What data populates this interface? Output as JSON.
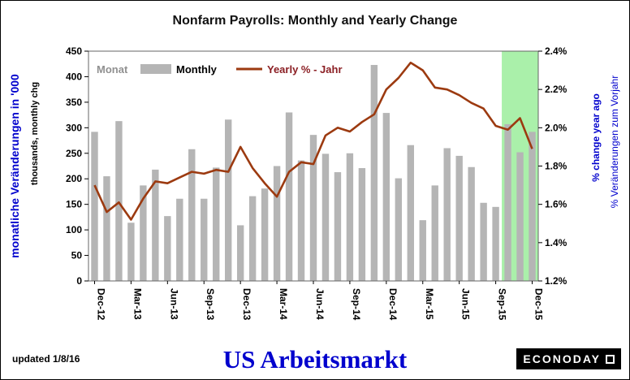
{
  "title": "Nonfarm Payrolls: Monthly and Yearly Change",
  "legend": {
    "monat_label": "Monat",
    "monthly_label": "Monthly",
    "yearly_label": "Yearly % - Jahr"
  },
  "left_axis": {
    "label_de": "monatliche Veränderungen in '000",
    "label_en": "thousands, monthly chg",
    "ticks": [
      0,
      50,
      100,
      150,
      200,
      250,
      300,
      350,
      400,
      450
    ]
  },
  "right_axis": {
    "label_en": "% change year ago",
    "label_de": "% Veränderungen zum Vorjahr",
    "tick_values": [
      1.2,
      1.4,
      1.6,
      1.8,
      2.0,
      2.2,
      2.4
    ],
    "tick_labels": [
      "1.2%",
      "1.4%",
      "1.6%",
      "1.8%",
      "2.0%",
      "2.2%",
      "2.4%"
    ]
  },
  "footer": {
    "updated": "updated 1/8/16",
    "big_title": "US Arbeitsmarkt",
    "logo_text": "ECONODAY"
  },
  "colors": {
    "bar": "#b5b5b5",
    "line": "#9c3a10",
    "legend_yearly_text": "#8b1f24",
    "monat_text": "#909090",
    "highlight": "#aaf0aa",
    "blue_label": "#0000cd",
    "axis_text": "#000000",
    "plot_border": "#666666"
  },
  "chart_data": {
    "type": "bar",
    "note": "gray bars = monthly change (left axis, thousands); dark red line = yearly % change (right axis)",
    "x": [
      "Dec-12",
      "Jan-13",
      "Feb-13",
      "Mar-13",
      "Apr-13",
      "May-13",
      "Jun-13",
      "Jul-13",
      "Aug-13",
      "Sep-13",
      "Oct-13",
      "Nov-13",
      "Dec-13",
      "Jan-14",
      "Feb-14",
      "Mar-14",
      "Apr-14",
      "May-14",
      "Jun-14",
      "Jul-14",
      "Aug-14",
      "Sep-14",
      "Oct-14",
      "Nov-14",
      "Dec-14",
      "Jan-15",
      "Feb-15",
      "Mar-15",
      "Apr-15",
      "May-15",
      "Jun-15",
      "Jul-15",
      "Aug-15",
      "Sep-15",
      "Oct-15",
      "Nov-15",
      "Dec-15"
    ],
    "x_tick_labels": [
      "Dec-12",
      "Mar-13",
      "Jun-13",
      "Sep-13",
      "Dec-13",
      "Mar-14",
      "Jun-14",
      "Sep-14",
      "Dec-14",
      "Mar-15",
      "Jun-15",
      "Sep-15",
      "Dec-15"
    ],
    "x_tick_every": 3,
    "series": [
      {
        "name": "Monthly",
        "type": "bar",
        "axis": "left",
        "values": [
          292,
          205,
          313,
          114,
          187,
          218,
          127,
          161,
          258,
          161,
          222,
          316,
          109,
          166,
          181,
          225,
          330,
          236,
          286,
          249,
          213,
          250,
          221,
          423,
          329,
          201,
          266,
          119,
          187,
          260,
          245,
          223,
          153,
          145,
          307,
          252,
          292
        ]
      },
      {
        "name": "Yearly % - Jahr",
        "type": "line",
        "axis": "right",
        "values": [
          1.7,
          1.56,
          1.61,
          1.52,
          1.63,
          1.72,
          1.71,
          1.74,
          1.77,
          1.76,
          1.78,
          1.77,
          1.9,
          1.79,
          1.71,
          1.64,
          1.77,
          1.82,
          1.81,
          1.96,
          2.0,
          1.98,
          2.03,
          2.07,
          2.2,
          2.26,
          2.34,
          2.3,
          2.21,
          2.2,
          2.17,
          2.13,
          2.1,
          2.01,
          1.99,
          2.05,
          1.89
        ]
      }
    ],
    "left_ylim": [
      0,
      450
    ],
    "right_ylim": [
      1.2,
      2.4
    ],
    "highlight_region": {
      "from": "Oct-15",
      "to": "Dec-15"
    }
  }
}
